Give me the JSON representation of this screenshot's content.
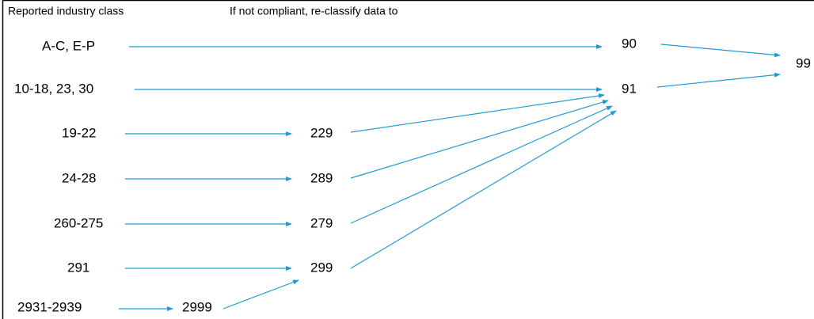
{
  "header": {
    "reported": "Reported industry class",
    "reclassify": "If not compliant, re-classify data to"
  },
  "nodes": [
    {
      "label": "A-C, E-P"
    },
    {
      "label": "10-18, 23, 30"
    },
    {
      "label": "19-22"
    },
    {
      "label": "24-28"
    },
    {
      "label": "260-275"
    },
    {
      "label": "291"
    },
    {
      "label": "2931-2939"
    },
    {
      "label": "2999"
    },
    {
      "label": "229"
    },
    {
      "label": "289"
    },
    {
      "label": "279"
    },
    {
      "label": "299"
    },
    {
      "label": "90"
    },
    {
      "label": "91"
    },
    {
      "label": "99"
    }
  ]
}
